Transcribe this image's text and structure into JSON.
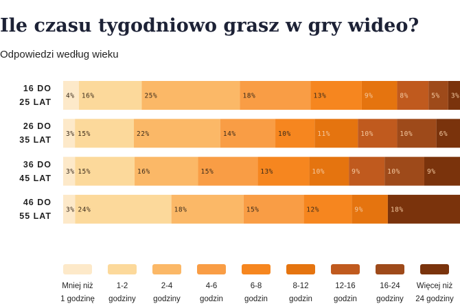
{
  "chart_data": {
    "type": "stacked-bar-horizontal",
    "title": "Ile czasu tygodniowo grasz w gry wideo?",
    "subtitle": "Odpowiedzi według wieku",
    "categories": [
      "16 DO\n25 LAT",
      "26 DO\n35 LAT",
      "36 DO\n45 LAT",
      "46 DO\n55 LAT"
    ],
    "series": [
      {
        "name": "Mniej niż\n1 godzinę",
        "color": "#fde9c9",
        "values": [
          4,
          3,
          3,
          3
        ],
        "value_labels": [
          "4%",
          "3%",
          "3%",
          "3%"
        ]
      },
      {
        "name": "1-2\ngodziny",
        "color": "#fcd99b",
        "values": [
          16,
          15,
          15,
          24
        ],
        "value_labels": [
          "16%",
          "15%",
          "15%",
          "24%"
        ]
      },
      {
        "name": "2-4\ngodziny",
        "color": "#fbb867",
        "values": [
          25,
          22,
          16,
          18
        ],
        "value_labels": [
          "25%",
          "22%",
          "16%",
          "18%"
        ]
      },
      {
        "name": "4-6\ngodzin",
        "color": "#f99d45",
        "values": [
          18,
          14,
          15,
          15
        ],
        "value_labels": [
          "18%",
          "14%",
          "15%",
          "15%"
        ]
      },
      {
        "name": "6-8\ngodzin",
        "color": "#f6861f",
        "values": [
          13,
          10,
          13,
          12
        ],
        "value_labels": [
          "13%",
          "10%",
          "13%",
          "12%"
        ]
      },
      {
        "name": "8-12\ngodzin",
        "color": "#e5740f",
        "values": [
          9,
          11,
          10,
          9
        ],
        "value_labels": [
          "9%",
          "11%",
          "10%",
          "9%"
        ]
      },
      {
        "name": "12-16\ngodzin",
        "color": "#c05a1e",
        "values": [
          8,
          10,
          9,
          null
        ],
        "value_labels": [
          "8%",
          "10%",
          "9%",
          null
        ]
      },
      {
        "name": "16-24\ngodziny",
        "color": "#9e4a1a",
        "values": [
          5,
          10,
          10,
          null
        ],
        "value_labels": [
          "5%",
          "10%",
          "10%",
          null
        ]
      },
      {
        "name": "Więcej niż\n24 godziny",
        "color": "#7a330c",
        "values": [
          3,
          6,
          9,
          18
        ],
        "value_labels": [
          "3%",
          "6%",
          "9%",
          "18%"
        ]
      }
    ]
  }
}
